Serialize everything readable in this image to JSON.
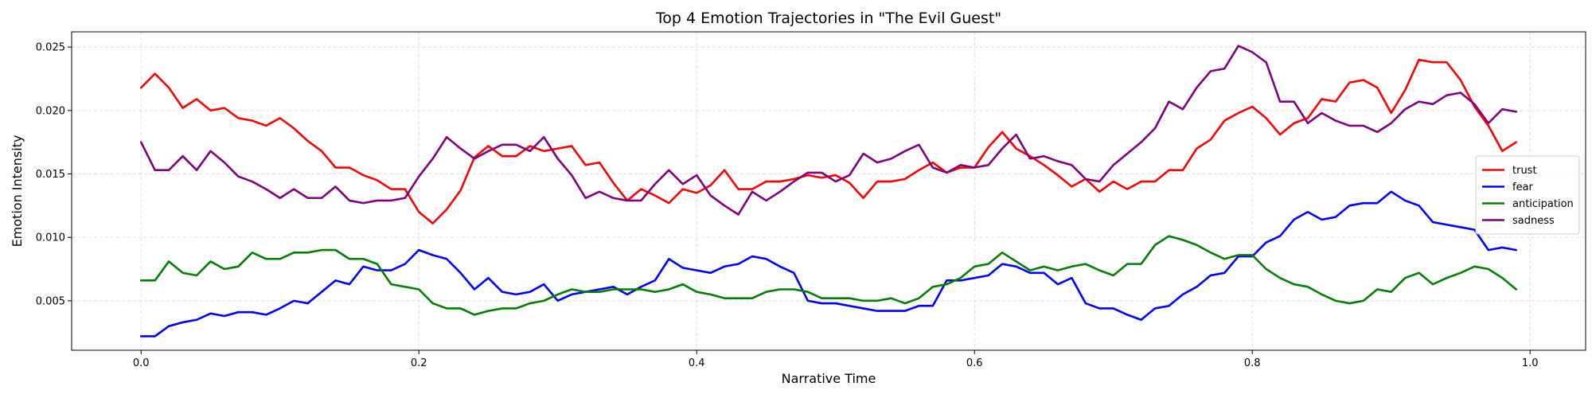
{
  "chart_data": {
    "type": "line",
    "title": "Top 4 Emotion Trajectories in \"The Evil Guest\"",
    "xlabel": "Narrative Time",
    "ylabel": "Emotion Intensity",
    "xlim": [
      -0.05,
      1.04
    ],
    "ylim": [
      0.0011,
      0.0262
    ],
    "xticks": [
      0.0,
      0.2,
      0.4,
      0.6,
      0.8,
      1.0
    ],
    "xtick_labels": [
      "0.0",
      "0.2",
      "0.4",
      "0.6",
      "0.8",
      "1.0"
    ],
    "yticks": [
      0.005,
      0.01,
      0.015,
      0.02,
      0.025
    ],
    "ytick_labels": [
      "0.005",
      "0.010",
      "0.015",
      "0.020",
      "0.025"
    ],
    "grid": true,
    "legend_position": "center-right",
    "x": [
      0.0,
      0.01,
      0.02,
      0.03,
      0.04,
      0.05,
      0.06,
      0.07,
      0.08,
      0.09,
      0.1,
      0.11,
      0.12,
      0.13,
      0.14,
      0.15,
      0.16,
      0.17,
      0.18,
      0.19,
      0.2,
      0.21,
      0.22,
      0.23,
      0.24,
      0.25,
      0.26,
      0.27,
      0.28,
      0.29,
      0.3,
      0.31,
      0.32,
      0.33,
      0.34,
      0.35,
      0.36,
      0.37,
      0.38,
      0.39,
      0.4,
      0.41,
      0.42,
      0.43,
      0.44,
      0.45,
      0.46,
      0.47,
      0.48,
      0.49,
      0.5,
      0.51,
      0.52,
      0.53,
      0.54,
      0.55,
      0.56,
      0.57,
      0.58,
      0.59,
      0.6,
      0.61,
      0.62,
      0.63,
      0.64,
      0.65,
      0.66,
      0.67,
      0.68,
      0.69,
      0.7,
      0.71,
      0.72,
      0.73,
      0.74,
      0.75,
      0.76,
      0.77,
      0.78,
      0.79,
      0.8,
      0.81,
      0.82,
      0.83,
      0.84,
      0.85,
      0.86,
      0.87,
      0.88,
      0.89,
      0.9,
      0.91,
      0.92,
      0.93,
      0.94,
      0.95,
      0.96,
      0.97,
      0.98,
      0.99
    ],
    "series": [
      {
        "name": "trust",
        "color": "#ff0000",
        "values": [
          0.0218,
          0.0229,
          0.0218,
          0.0202,
          0.0209,
          0.02,
          0.0202,
          0.0194,
          0.0192,
          0.0188,
          0.0194,
          0.0186,
          0.0176,
          0.0168,
          0.0155,
          0.0155,
          0.0149,
          0.0145,
          0.0138,
          0.0138,
          0.012,
          0.0111,
          0.0122,
          0.0137,
          0.0163,
          0.0172,
          0.0164,
          0.0164,
          0.0172,
          0.0168,
          0.017,
          0.0172,
          0.0157,
          0.0159,
          0.0143,
          0.0129,
          0.0138,
          0.0133,
          0.0127,
          0.0138,
          0.0135,
          0.0141,
          0.0153,
          0.0138,
          0.0138,
          0.0144,
          0.0144,
          0.0146,
          0.0149,
          0.0147,
          0.0149,
          0.0143,
          0.0131,
          0.0144,
          0.0144,
          0.0146,
          0.0153,
          0.0159,
          0.0151,
          0.0155,
          0.0155,
          0.0171,
          0.0183,
          0.017,
          0.0164,
          0.0157,
          0.0149,
          0.014,
          0.0146,
          0.0136,
          0.0144,
          0.0138,
          0.0144,
          0.0144,
          0.0153,
          0.0153,
          0.017,
          0.0177,
          0.0192,
          0.0198,
          0.0203,
          0.0194,
          0.0181,
          0.019,
          0.0194,
          0.0209,
          0.0207,
          0.0222,
          0.0224,
          0.0218,
          0.0198,
          0.0216,
          0.024,
          0.0238,
          0.0238,
          0.0224,
          0.0203,
          0.0188,
          0.0168,
          0.0175
        ]
      },
      {
        "name": "fear",
        "color": "#0000ff",
        "values": [
          0.0022,
          0.0022,
          0.003,
          0.0033,
          0.0035,
          0.004,
          0.0038,
          0.0041,
          0.0041,
          0.0039,
          0.0044,
          0.005,
          0.0048,
          0.0057,
          0.0066,
          0.0063,
          0.0077,
          0.0074,
          0.0074,
          0.0079,
          0.009,
          0.0086,
          0.0083,
          0.0072,
          0.0059,
          0.0068,
          0.0057,
          0.0055,
          0.0057,
          0.0063,
          0.005,
          0.0055,
          0.0057,
          0.0059,
          0.0061,
          0.0055,
          0.0061,
          0.0066,
          0.0083,
          0.0076,
          0.0074,
          0.0072,
          0.0077,
          0.0079,
          0.0085,
          0.0083,
          0.0077,
          0.0072,
          0.005,
          0.0048,
          0.0048,
          0.0046,
          0.0044,
          0.0042,
          0.0042,
          0.0042,
          0.0046,
          0.0046,
          0.0066,
          0.0066,
          0.0068,
          0.007,
          0.0079,
          0.0077,
          0.0072,
          0.0072,
          0.0063,
          0.0068,
          0.0048,
          0.0044,
          0.0044,
          0.0039,
          0.0035,
          0.0044,
          0.0046,
          0.0055,
          0.0061,
          0.007,
          0.0072,
          0.0085,
          0.0085,
          0.0096,
          0.0101,
          0.0114,
          0.012,
          0.0114,
          0.0116,
          0.0125,
          0.0127,
          0.0127,
          0.0136,
          0.0129,
          0.0125,
          0.0112,
          0.011,
          0.0108,
          0.0106,
          0.009,
          0.0092,
          0.009
        ]
      },
      {
        "name": "anticipation",
        "color": "#008000",
        "values": [
          0.0066,
          0.0066,
          0.0081,
          0.0072,
          0.007,
          0.0081,
          0.0075,
          0.0077,
          0.0088,
          0.0083,
          0.0083,
          0.0088,
          0.0088,
          0.009,
          0.009,
          0.0083,
          0.0083,
          0.0079,
          0.0063,
          0.0061,
          0.0059,
          0.0048,
          0.0044,
          0.0044,
          0.0039,
          0.0042,
          0.0044,
          0.0044,
          0.0048,
          0.005,
          0.0055,
          0.0059,
          0.0057,
          0.0057,
          0.0059,
          0.0059,
          0.0059,
          0.0057,
          0.0059,
          0.0063,
          0.0057,
          0.0055,
          0.0052,
          0.0052,
          0.0052,
          0.0057,
          0.0059,
          0.0059,
          0.0057,
          0.0052,
          0.0052,
          0.0052,
          0.005,
          0.005,
          0.0052,
          0.0048,
          0.0052,
          0.0061,
          0.0063,
          0.0068,
          0.0077,
          0.0079,
          0.0088,
          0.0081,
          0.0074,
          0.0077,
          0.0074,
          0.0077,
          0.0079,
          0.0074,
          0.007,
          0.0079,
          0.0079,
          0.0094,
          0.0101,
          0.0098,
          0.0094,
          0.0088,
          0.0083,
          0.0086,
          0.0086,
          0.0075,
          0.0068,
          0.0063,
          0.0061,
          0.0055,
          0.005,
          0.0048,
          0.005,
          0.0059,
          0.0057,
          0.0068,
          0.0072,
          0.0063,
          0.0068,
          0.0072,
          0.0077,
          0.0075,
          0.0068,
          0.0059
        ]
      },
      {
        "name": "sadness",
        "color": "#800080",
        "values": [
          0.0175,
          0.0153,
          0.0153,
          0.0164,
          0.0153,
          0.0168,
          0.0159,
          0.0148,
          0.0144,
          0.0138,
          0.0131,
          0.0138,
          0.0131,
          0.0131,
          0.014,
          0.0129,
          0.0127,
          0.0129,
          0.0129,
          0.0131,
          0.0148,
          0.0162,
          0.0179,
          0.017,
          0.0162,
          0.0168,
          0.0173,
          0.0173,
          0.0168,
          0.0179,
          0.0162,
          0.0149,
          0.0131,
          0.0136,
          0.0131,
          0.0129,
          0.0129,
          0.0142,
          0.0153,
          0.0142,
          0.0149,
          0.0133,
          0.0125,
          0.0118,
          0.0136,
          0.0129,
          0.0136,
          0.0144,
          0.0151,
          0.0151,
          0.0144,
          0.0149,
          0.0166,
          0.0159,
          0.0162,
          0.0168,
          0.0173,
          0.0155,
          0.0151,
          0.0157,
          0.0155,
          0.0157,
          0.017,
          0.0181,
          0.0162,
          0.0164,
          0.016,
          0.0157,
          0.0146,
          0.0144,
          0.0157,
          0.0166,
          0.0175,
          0.0186,
          0.0207,
          0.0201,
          0.0218,
          0.0231,
          0.0233,
          0.0251,
          0.0246,
          0.0238,
          0.0207,
          0.0207,
          0.019,
          0.0198,
          0.0192,
          0.0188,
          0.0188,
          0.0183,
          0.019,
          0.0201,
          0.0207,
          0.0205,
          0.0212,
          0.0214,
          0.0205,
          0.019,
          0.0201,
          0.0199
        ]
      }
    ]
  }
}
